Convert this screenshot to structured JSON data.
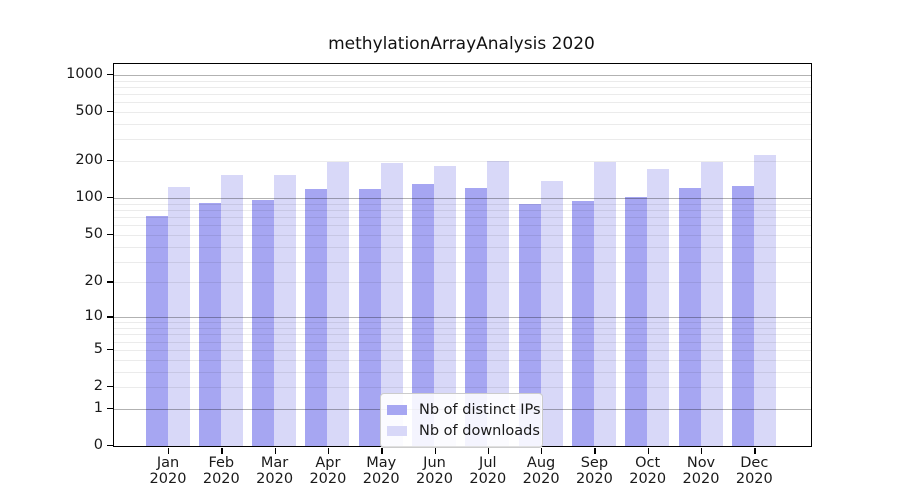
{
  "title": "methylationArrayAnalysis 2020",
  "chart_data": {
    "type": "bar",
    "title": "methylationArrayAnalysis 2020",
    "categories": [
      "Jan",
      "Feb",
      "Mar",
      "Apr",
      "May",
      "Jun",
      "Jul",
      "Aug",
      "Sep",
      "Oct",
      "Nov",
      "Dec"
    ],
    "year_label": "2020",
    "series": [
      {
        "name": "Nb of distinct IPs",
        "color": "#a6a6f2",
        "values": [
          71,
          92,
          97,
          118,
          119,
          130,
          120,
          90,
          94,
          102,
          120,
          126
        ]
      },
      {
        "name": "Nb of downloads",
        "color": "#d8d8f8",
        "values": [
          123,
          155,
          153,
          198,
          192,
          184,
          201,
          139,
          198,
          172,
          198,
          225
        ]
      }
    ],
    "y_scale": "log1p",
    "y_axis_ticks": [
      0,
      1,
      2,
      5,
      10,
      20,
      50,
      100,
      200,
      500,
      1000
    ],
    "y_major_gridlines": [
      1,
      10,
      100,
      1000
    ],
    "y_minor_gridlines": [
      2,
      3,
      4,
      5,
      6,
      7,
      8,
      9,
      20,
      30,
      40,
      50,
      60,
      70,
      80,
      90,
      200,
      300,
      400,
      500,
      600,
      700,
      800,
      900
    ],
    "ylim": [
      0,
      1250
    ],
    "grid": true,
    "legend_position": "bottom-center"
  },
  "legend": {
    "items": [
      {
        "label": "Nb of distinct IPs"
      },
      {
        "label": "Nb of downloads"
      }
    ]
  }
}
